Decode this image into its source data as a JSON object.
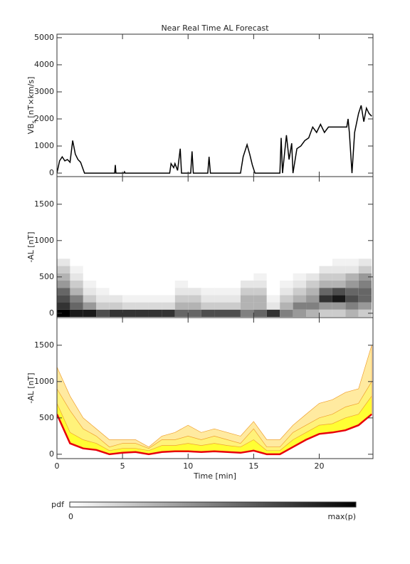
{
  "chart_data": [
    {
      "type": "line",
      "title": "Near Real Time AL Forecast",
      "y_label": {
        "main": "VB",
        "sub": "s",
        "unit": " [nT×km/s]"
      },
      "color": "#000000",
      "x": [
        0,
        0.2,
        0.4,
        0.6,
        0.8,
        1.0,
        1.2,
        1.4,
        1.6,
        1.8,
        2.1,
        4.4,
        4.45,
        4.5,
        5.1,
        5.15,
        5.2,
        8.6,
        8.7,
        8.9,
        9.0,
        9.2,
        9.4,
        9.5,
        10.2,
        10.3,
        10.4,
        11.5,
        11.6,
        11.7,
        14.0,
        14.2,
        14.5,
        14.7,
        14.9,
        15.1,
        17.0,
        17.1,
        17.2,
        17.5,
        17.7,
        17.9,
        18.0,
        18.3,
        18.6,
        18.9,
        19.2,
        19.5,
        19.8,
        20.1,
        20.4,
        20.7,
        21.0,
        21.5,
        22.1,
        22.2,
        22.3,
        22.5,
        22.7,
        23.0,
        23.2,
        23.4,
        23.6,
        23.8,
        24.0
      ],
      "values": [
        0,
        450,
        600,
        450,
        500,
        400,
        1200,
        700,
        500,
        400,
        0,
        0,
        300,
        0,
        0,
        50,
        0,
        0,
        350,
        200,
        350,
        100,
        900,
        0,
        0,
        800,
        0,
        0,
        600,
        0,
        0,
        600,
        1050,
        700,
        300,
        0,
        0,
        1300,
        0,
        1400,
        500,
        1100,
        0,
        900,
        1000,
        1200,
        1300,
        1700,
        1500,
        1800,
        1500,
        1700,
        1700,
        1700,
        1700,
        2000,
        1500,
        0,
        1500,
        2200,
        2500,
        1900,
        2400,
        2200,
        2100
      ],
      "xlim": [
        0,
        24.1
      ],
      "ylim": [
        -130,
        5130
      ],
      "yticks": [
        0,
        1000,
        2000,
        3000,
        4000,
        5000
      ]
    },
    {
      "type": "heatmap",
      "y_label": "-AL [nT]",
      "x": [
        0.5,
        1.5,
        2.5,
        3.5,
        4.5,
        5.5,
        6.5,
        7.5,
        8.5,
        9.5,
        10.5,
        11.5,
        12.5,
        13.5,
        14.5,
        15.5,
        16.5,
        17.5,
        18.5,
        19.5,
        20.5,
        21.5,
        22.5,
        23.5
      ],
      "y": [
        0,
        100,
        200,
        300,
        400,
        500,
        600,
        700
      ],
      "z": [
        [
          1,
          0.8,
          0.7,
          0.6,
          0.4,
          0.3,
          0.2,
          0.1
        ],
        [
          0.9,
          0.6,
          0.5,
          0.3,
          0.2,
          0.1,
          0.05,
          0
        ],
        [
          0.9,
          0.4,
          0.2,
          0.1,
          0.05,
          0,
          0,
          0
        ],
        [
          0.7,
          0.2,
          0.1,
          0.05,
          0,
          0,
          0,
          0
        ],
        [
          0.8,
          0.2,
          0.1,
          0,
          0,
          0,
          0,
          0
        ],
        [
          0.8,
          0.15,
          0.05,
          0,
          0,
          0,
          0,
          0
        ],
        [
          0.8,
          0.15,
          0.05,
          0,
          0,
          0,
          0,
          0
        ],
        [
          0.8,
          0.15,
          0.05,
          0,
          0,
          0,
          0,
          0
        ],
        [
          0.8,
          0.15,
          0.05,
          0,
          0,
          0,
          0,
          0
        ],
        [
          0.6,
          0.3,
          0.2,
          0.1,
          0.05,
          0,
          0,
          0
        ],
        [
          0.6,
          0.3,
          0.2,
          0.1,
          0,
          0,
          0,
          0
        ],
        [
          0.7,
          0.2,
          0.1,
          0.05,
          0,
          0,
          0,
          0
        ],
        [
          0.7,
          0.2,
          0.1,
          0.05,
          0,
          0,
          0,
          0
        ],
        [
          0.7,
          0.2,
          0.1,
          0.05,
          0,
          0,
          0,
          0
        ],
        [
          0.5,
          0.3,
          0.3,
          0.2,
          0.1,
          0,
          0,
          0
        ],
        [
          0.6,
          0.3,
          0.3,
          0.2,
          0.1,
          0.05,
          0,
          0
        ],
        [
          0.8,
          0.1,
          0.05,
          0,
          0,
          0,
          0,
          0
        ],
        [
          0.5,
          0.3,
          0.2,
          0.1,
          0.05,
          0,
          0,
          0
        ],
        [
          0.4,
          0.5,
          0.3,
          0.2,
          0.1,
          0.05,
          0,
          0
        ],
        [
          0.3,
          0.5,
          0.4,
          0.3,
          0.2,
          0.1,
          0,
          0
        ],
        [
          0.2,
          0.4,
          0.8,
          0.6,
          0.3,
          0.2,
          0.1,
          0
        ],
        [
          0.2,
          0.4,
          0.9,
          0.7,
          0.3,
          0.2,
          0.1,
          0.05
        ],
        [
          0.3,
          0.5,
          0.7,
          0.6,
          0.4,
          0.3,
          0.1,
          0.05
        ],
        [
          0.2,
          0.4,
          0.6,
          0.6,
          0.5,
          0.4,
          0.2,
          0.1
        ]
      ],
      "xlim": [
        0,
        24.1
      ],
      "ylim": [
        -60,
        1880
      ],
      "yticks": [
        0,
        500,
        1000,
        1500
      ],
      "colorbar": {
        "label": "pdf",
        "min_label": "0",
        "max_label": "max(p)"
      }
    },
    {
      "type": "bands",
      "y_label": "-AL [nT]",
      "x_label": "Time [min]",
      "x": [
        0,
        1,
        2,
        3,
        4,
        5,
        6,
        7,
        8,
        9,
        10,
        11,
        12,
        13,
        14,
        15,
        16,
        17,
        18,
        19,
        20,
        21,
        22,
        23,
        24
      ],
      "series": [
        {
          "color": "#ffeaa0",
          "values": [
            1200,
            800,
            500,
            350,
            200,
            200,
            200,
            100,
            250,
            300,
            400,
            300,
            350,
            300,
            250,
            450,
            200,
            200,
            400,
            550,
            700,
            750,
            850,
            900,
            1500
          ]
        },
        {
          "color": "#fff27a",
          "values": [
            900,
            600,
            350,
            250,
            100,
            150,
            150,
            80,
            200,
            200,
            250,
            200,
            250,
            200,
            150,
            350,
            100,
            100,
            300,
            400,
            500,
            550,
            650,
            700,
            1000
          ]
        },
        {
          "color": "#ffff33",
          "values": [
            700,
            300,
            200,
            150,
            50,
            80,
            80,
            50,
            120,
            120,
            150,
            120,
            150,
            120,
            100,
            200,
            50,
            50,
            200,
            300,
            400,
            420,
            500,
            550,
            800
          ]
        },
        {
          "color": "#e8000b",
          "values": [
            550,
            150,
            80,
            60,
            0,
            20,
            30,
            0,
            30,
            40,
            40,
            30,
            40,
            30,
            20,
            50,
            0,
            0,
            100,
            200,
            280,
            300,
            330,
            400,
            550
          ]
        }
      ],
      "xlim": [
        0,
        24.1
      ],
      "ylim": [
        -60,
        1880
      ],
      "yticks": [
        0,
        500,
        1000,
        1500
      ],
      "xticks": [
        0,
        5,
        10,
        15,
        20
      ]
    }
  ]
}
